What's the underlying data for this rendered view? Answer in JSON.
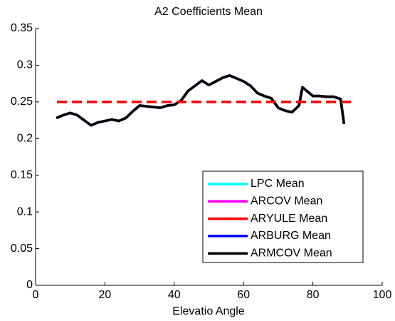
{
  "chart_data": {
    "type": "line",
    "title": "A2 Coefficients Mean",
    "x_label": "Elevatio Angle",
    "x": [
      6,
      8,
      10,
      12,
      14,
      16,
      18,
      20,
      22,
      24,
      26,
      28,
      30,
      32,
      34,
      36,
      38,
      40,
      42,
      44,
      46,
      48,
      50,
      52,
      54,
      56,
      58,
      60,
      62,
      64,
      66,
      68,
      70,
      72,
      74,
      76,
      77,
      78,
      80,
      82,
      84,
      86,
      88,
      89
    ],
    "series": [
      {
        "name": "LPC Mean",
        "color": "#00ffff",
        "values": [
          0.228,
          0.232,
          0.235,
          0.232,
          0.225,
          0.218,
          0.222,
          0.224,
          0.226,
          0.224,
          0.228,
          0.237,
          0.245,
          0.244,
          0.243,
          0.242,
          0.245,
          0.246,
          0.252,
          0.265,
          0.272,
          0.279,
          0.273,
          0.278,
          0.283,
          0.286,
          0.282,
          0.278,
          0.272,
          0.262,
          0.258,
          0.255,
          0.242,
          0.238,
          0.236,
          0.245,
          0.27,
          0.266,
          0.258,
          0.258,
          0.257,
          0.257,
          0.254,
          0.22
        ]
      },
      {
        "name": "ARCOV Mean",
        "color": "#ff00ff",
        "values": [
          0.228,
          0.232,
          0.235,
          0.232,
          0.225,
          0.218,
          0.222,
          0.224,
          0.226,
          0.224,
          0.228,
          0.237,
          0.245,
          0.244,
          0.243,
          0.242,
          0.245,
          0.246,
          0.252,
          0.265,
          0.272,
          0.279,
          0.273,
          0.278,
          0.283,
          0.286,
          0.282,
          0.278,
          0.272,
          0.262,
          0.258,
          0.255,
          0.242,
          0.238,
          0.236,
          0.245,
          0.27,
          0.266,
          0.258,
          0.258,
          0.257,
          0.257,
          0.254,
          0.22
        ]
      },
      {
        "name": "ARYULE Mean",
        "color": "#ff0000",
        "values": [
          0.228,
          0.232,
          0.235,
          0.232,
          0.225,
          0.218,
          0.222,
          0.224,
          0.226,
          0.224,
          0.228,
          0.237,
          0.245,
          0.244,
          0.243,
          0.242,
          0.245,
          0.246,
          0.252,
          0.265,
          0.272,
          0.279,
          0.273,
          0.278,
          0.283,
          0.286,
          0.282,
          0.278,
          0.272,
          0.262,
          0.258,
          0.255,
          0.242,
          0.238,
          0.236,
          0.245,
          0.27,
          0.266,
          0.258,
          0.258,
          0.257,
          0.257,
          0.254,
          0.22
        ]
      },
      {
        "name": "ARBURG Mean",
        "color": "#0000ff",
        "values": [
          0.228,
          0.232,
          0.235,
          0.232,
          0.225,
          0.218,
          0.222,
          0.224,
          0.226,
          0.224,
          0.228,
          0.237,
          0.245,
          0.244,
          0.243,
          0.242,
          0.245,
          0.246,
          0.252,
          0.265,
          0.272,
          0.279,
          0.273,
          0.278,
          0.283,
          0.286,
          0.282,
          0.278,
          0.272,
          0.262,
          0.258,
          0.255,
          0.242,
          0.238,
          0.236,
          0.245,
          0.27,
          0.266,
          0.258,
          0.258,
          0.257,
          0.257,
          0.254,
          0.22
        ]
      },
      {
        "name": "ARMCOV Mean",
        "color": "#000000",
        "values": [
          0.228,
          0.232,
          0.235,
          0.232,
          0.225,
          0.218,
          0.222,
          0.224,
          0.226,
          0.224,
          0.228,
          0.237,
          0.245,
          0.244,
          0.243,
          0.242,
          0.245,
          0.246,
          0.252,
          0.265,
          0.272,
          0.279,
          0.273,
          0.278,
          0.283,
          0.286,
          0.282,
          0.278,
          0.272,
          0.262,
          0.258,
          0.255,
          0.242,
          0.238,
          0.236,
          0.245,
          0.27,
          0.266,
          0.258,
          0.258,
          0.257,
          0.257,
          0.254,
          0.22
        ]
      }
    ],
    "reference_line": {
      "value": 0.25,
      "color": "#ff0000",
      "dashed": true
    },
    "xlim": [
      0,
      100
    ],
    "xticks": [
      0,
      20,
      40,
      60,
      80,
      100
    ],
    "ylim": [
      0,
      0.35
    ],
    "yticks": [
      0,
      0.05,
      0.1,
      0.15,
      0.2,
      0.25,
      0.3,
      0.35
    ],
    "grid": false,
    "legend": "lower right"
  }
}
